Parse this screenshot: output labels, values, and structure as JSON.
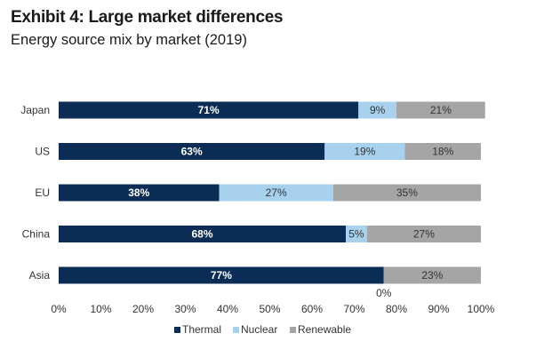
{
  "header": {
    "title": "Exhibit 4: Large market differences",
    "subtitle": "Energy source mix by market (2019)"
  },
  "chart_data": {
    "type": "bar",
    "orientation": "horizontal",
    "stacked": true,
    "categories": [
      "Japan",
      "US",
      "EU",
      "China",
      "Asia"
    ],
    "series": [
      {
        "name": "Thermal",
        "values": [
          71,
          63,
          38,
          68,
          77
        ],
        "color": "#0b2d55"
      },
      {
        "name": "Nuclear",
        "values": [
          9,
          19,
          27,
          5,
          0
        ],
        "color": "#a8d1ee"
      },
      {
        "name": "Renewable",
        "values": [
          21,
          18,
          35,
          27,
          23
        ],
        "color": "#a5a5a5"
      }
    ],
    "data_labels": [
      [
        "71%",
        "9%",
        "21%"
      ],
      [
        "63%",
        "19%",
        "18%"
      ],
      [
        "38%",
        "27%",
        "35%"
      ],
      [
        "68%",
        "5%",
        "27%"
      ],
      [
        "77%",
        "0%",
        "23%"
      ]
    ],
    "xlim": [
      0,
      100
    ],
    "xticks": [
      "0%",
      "10%",
      "20%",
      "30%",
      "40%",
      "50%",
      "60%",
      "70%",
      "80%",
      "90%",
      "100%"
    ],
    "grid": false,
    "legend_position": "bottom"
  }
}
